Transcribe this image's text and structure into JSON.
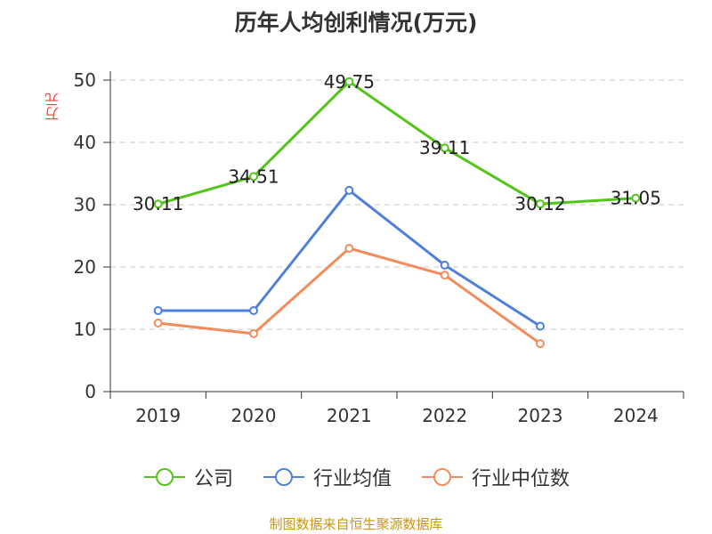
{
  "chart_data": {
    "type": "line",
    "title": "历年人均创利情况(万元)",
    "ylabel": "万元",
    "xlabel": "",
    "categories": [
      "2019",
      "2020",
      "2021",
      "2022",
      "2023",
      "2024"
    ],
    "ylim": [
      0,
      50
    ],
    "yticks": [
      0,
      10,
      20,
      30,
      40,
      50
    ],
    "grid": "horizontal dashed",
    "legend_position": "bottom",
    "series": [
      {
        "name": "公司",
        "color": "#52c41a",
        "values": [
          30.11,
          34.51,
          49.75,
          39.11,
          30.12,
          31.05
        ],
        "labels": [
          "30.11",
          "34.51",
          "49.75",
          "39.11",
          "30.12",
          "31.05"
        ]
      },
      {
        "name": "行业均值",
        "color": "#4f7fdb",
        "values": [
          13.0,
          13.0,
          32.3,
          20.3,
          10.5,
          null
        ]
      },
      {
        "name": "行业中位数",
        "color": "#f28c5a",
        "values": [
          11.0,
          9.3,
          23.0,
          18.7,
          7.7,
          null
        ]
      }
    ]
  },
  "source": "制图数据来自恒生聚源数据库"
}
